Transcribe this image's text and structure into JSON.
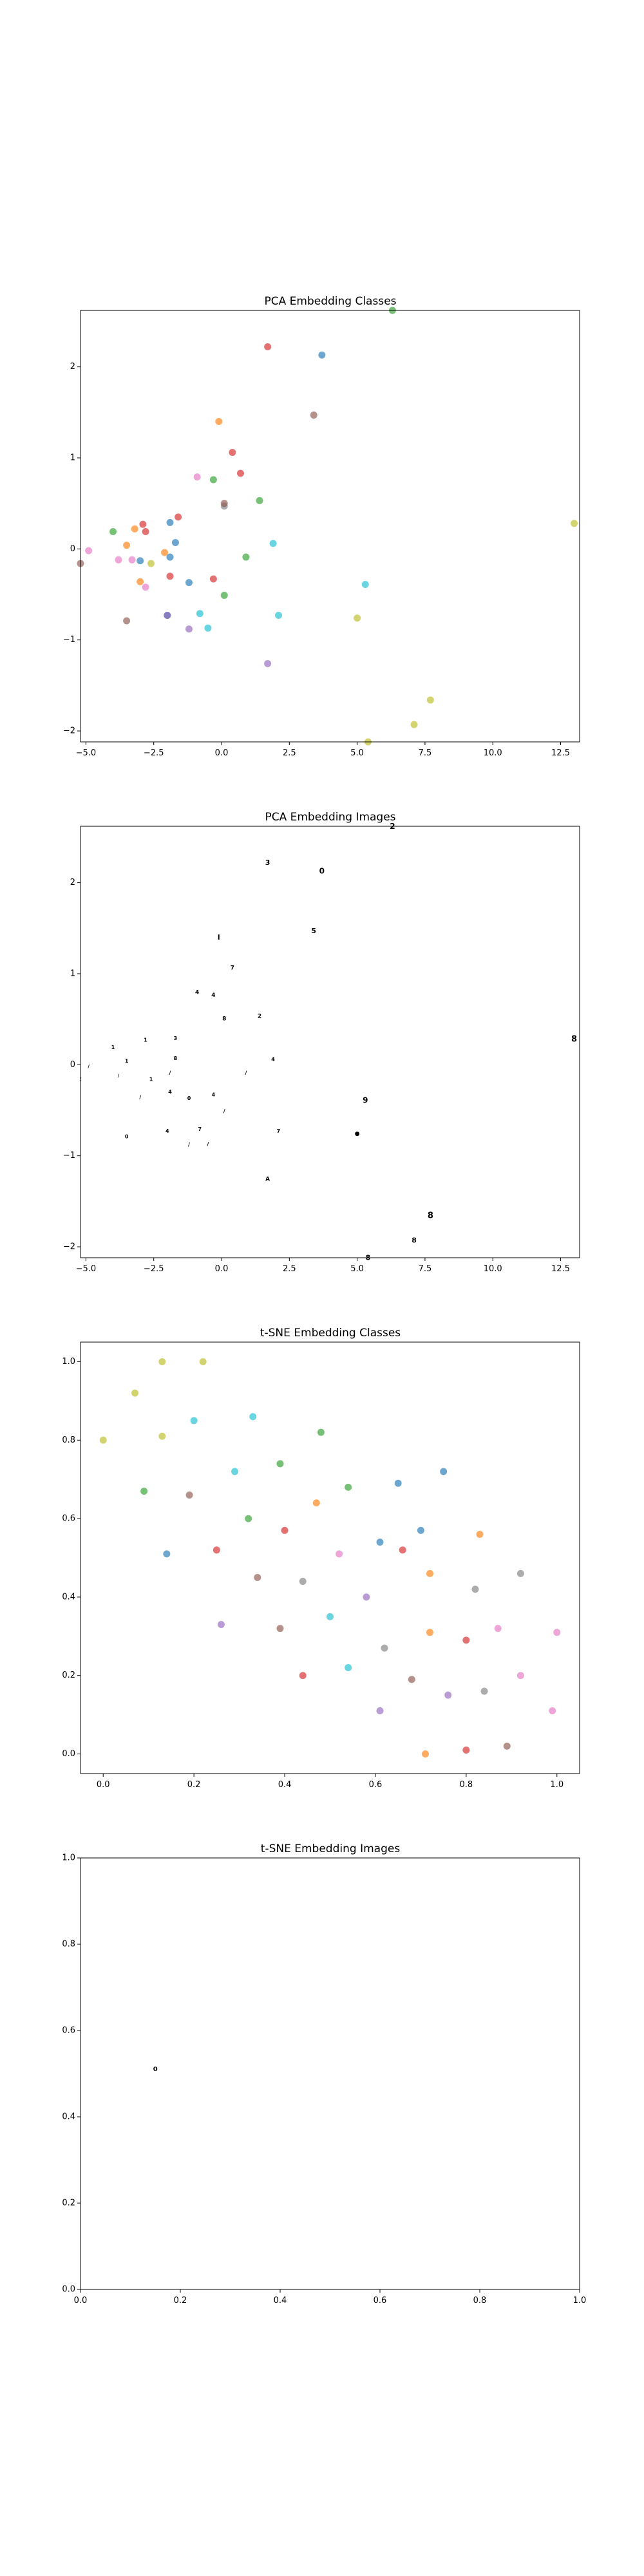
{
  "figure": {
    "background": "#ffffff"
  },
  "chart_data": [
    {
      "type": "scatter",
      "title": "PCA Embedding Classes",
      "xlabel": "",
      "ylabel": "",
      "xlim": [
        -5.2,
        13.2
      ],
      "ylim": [
        -2.12,
        2.62
      ],
      "xticks": [
        -5.0,
        -2.5,
        0.0,
        2.5,
        5.0,
        7.5,
        10.0,
        12.5
      ],
      "xtick_labels": [
        "−5.0",
        "−2.5",
        "0.0",
        "2.5",
        "5.0",
        "7.5",
        "10.0",
        "12.5"
      ],
      "yticks": [
        -2,
        -1,
        0,
        1,
        2
      ],
      "ytick_labels": [
        "−2",
        "−1",
        "0",
        "1",
        "2"
      ],
      "grid": false,
      "marker_alpha": 0.65,
      "points": [
        {
          "x": 1.7,
          "y": 2.22,
          "color": "#d62728"
        },
        {
          "x": 3.7,
          "y": 2.13,
          "color": "#1f77b4"
        },
        {
          "x": 6.3,
          "y": 2.62,
          "color": "#2ca02c"
        },
        {
          "x": -0.1,
          "y": 1.4,
          "color": "#ff7f0e"
        },
        {
          "x": 3.4,
          "y": 1.47,
          "color": "#8c564b"
        },
        {
          "x": 0.4,
          "y": 1.06,
          "color": "#d62728"
        },
        {
          "x": 0.7,
          "y": 0.83,
          "color": "#d62728"
        },
        {
          "x": -0.9,
          "y": 0.79,
          "color": "#e377c2"
        },
        {
          "x": -0.3,
          "y": 0.76,
          "color": "#2ca02c"
        },
        {
          "x": 1.4,
          "y": 0.53,
          "color": "#2ca02c"
        },
        {
          "x": 0.1,
          "y": 0.47,
          "color": "#7f7f7f"
        },
        {
          "x": 0.1,
          "y": 0.5,
          "color": "#8c564b"
        },
        {
          "x": -1.6,
          "y": 0.35,
          "color": "#d62728"
        },
        {
          "x": -1.9,
          "y": 0.29,
          "color": "#1f77b4"
        },
        {
          "x": -2.9,
          "y": 0.27,
          "color": "#d62728"
        },
        {
          "x": -3.2,
          "y": 0.22,
          "color": "#ff7f0e"
        },
        {
          "x": -2.8,
          "y": 0.19,
          "color": "#d62728"
        },
        {
          "x": -4.0,
          "y": 0.19,
          "color": "#2ca02c"
        },
        {
          "x": 13.0,
          "y": 0.28,
          "color": "#bcbd22"
        },
        {
          "x": -1.7,
          "y": 0.07,
          "color": "#1f77b4"
        },
        {
          "x": -3.5,
          "y": 0.04,
          "color": "#ff7f0e"
        },
        {
          "x": 1.9,
          "y": 0.06,
          "color": "#17becf"
        },
        {
          "x": -4.9,
          "y": -0.02,
          "color": "#e377c2"
        },
        {
          "x": -2.1,
          "y": -0.04,
          "color": "#ff7f0e"
        },
        {
          "x": -1.9,
          "y": -0.09,
          "color": "#1f77b4"
        },
        {
          "x": 0.9,
          "y": -0.09,
          "color": "#2ca02c"
        },
        {
          "x": -3.8,
          "y": -0.12,
          "color": "#e377c2"
        },
        {
          "x": -3.3,
          "y": -0.12,
          "color": "#e377c2"
        },
        {
          "x": -3.0,
          "y": -0.13,
          "color": "#1f77b4"
        },
        {
          "x": -2.6,
          "y": -0.16,
          "color": "#bcbd22"
        },
        {
          "x": -5.2,
          "y": -0.16,
          "color": "#8c564b"
        },
        {
          "x": -1.9,
          "y": -0.3,
          "color": "#d62728"
        },
        {
          "x": -0.3,
          "y": -0.33,
          "color": "#d62728"
        },
        {
          "x": -3.0,
          "y": -0.36,
          "color": "#ff7f0e"
        },
        {
          "x": -1.2,
          "y": -0.37,
          "color": "#1f77b4"
        },
        {
          "x": 5.3,
          "y": -0.39,
          "color": "#17becf"
        },
        {
          "x": -2.8,
          "y": -0.42,
          "color": "#e377c2"
        },
        {
          "x": 0.1,
          "y": -0.51,
          "color": "#2ca02c"
        },
        {
          "x": -0.8,
          "y": -0.71,
          "color": "#17becf"
        },
        {
          "x": -2.0,
          "y": -0.73,
          "color": "#1f77b4"
        },
        {
          "x": -2.0,
          "y": -0.73,
          "color": "#9467bd"
        },
        {
          "x": 2.1,
          "y": -0.73,
          "color": "#17becf"
        },
        {
          "x": 5.0,
          "y": -0.76,
          "color": "#bcbd22"
        },
        {
          "x": -3.5,
          "y": -0.79,
          "color": "#8c564b"
        },
        {
          "x": -0.5,
          "y": -0.87,
          "color": "#17becf"
        },
        {
          "x": -1.2,
          "y": -0.88,
          "color": "#9467bd"
        },
        {
          "x": 1.7,
          "y": -1.26,
          "color": "#9467bd"
        },
        {
          "x": 7.7,
          "y": -1.66,
          "color": "#bcbd22"
        },
        {
          "x": 7.1,
          "y": -1.93,
          "color": "#bcbd22"
        },
        {
          "x": 5.4,
          "y": -2.12,
          "color": "#bcbd22"
        }
      ]
    },
    {
      "type": "scatter",
      "title": "PCA Embedding Images",
      "xlabel": "",
      "ylabel": "",
      "xlim": [
        -5.2,
        13.2
      ],
      "ylim": [
        -2.12,
        2.62
      ],
      "xticks": [
        -5.0,
        -2.5,
        0.0,
        2.5,
        5.0,
        7.5,
        10.0,
        12.5
      ],
      "xtick_labels": [
        "−5.0",
        "−2.5",
        "0.0",
        "2.5",
        "5.0",
        "7.5",
        "10.0",
        "12.5"
      ],
      "yticks": [
        -2,
        -1,
        0,
        1,
        2
      ],
      "ytick_labels": [
        "−2",
        "−1",
        "0",
        "1",
        "2"
      ],
      "grid": false,
      "markers": "image-thumbnails",
      "points": [
        {
          "x": 1.7,
          "y": 2.22,
          "glyph": "3",
          "size": 11
        },
        {
          "x": 3.7,
          "y": 2.13,
          "glyph": "0",
          "size": 12
        },
        {
          "x": 6.3,
          "y": 2.62,
          "glyph": "2",
          "size": 12
        },
        {
          "x": 3.4,
          "y": 1.47,
          "glyph": "5",
          "size": 11
        },
        {
          "x": -0.1,
          "y": 1.4,
          "glyph": "l",
          "size": 11
        },
        {
          "x": 0.4,
          "y": 1.06,
          "glyph": "7",
          "size": 9
        },
        {
          "x": -0.9,
          "y": 0.79,
          "glyph": "4",
          "size": 9
        },
        {
          "x": -0.3,
          "y": 0.76,
          "glyph": "4",
          "size": 9
        },
        {
          "x": 1.4,
          "y": 0.53,
          "glyph": "2",
          "size": 9
        },
        {
          "x": 0.1,
          "y": 0.5,
          "glyph": "8",
          "size": 9
        },
        {
          "x": -1.7,
          "y": 0.29,
          "glyph": "3",
          "size": 8
        },
        {
          "x": -2.8,
          "y": 0.27,
          "glyph": "1",
          "size": 8
        },
        {
          "x": 13.0,
          "y": 0.28,
          "glyph": "8",
          "size": 13
        },
        {
          "x": -4.0,
          "y": 0.19,
          "glyph": "1",
          "size": 8
        },
        {
          "x": 1.9,
          "y": 0.06,
          "glyph": "4",
          "size": 8
        },
        {
          "x": -1.7,
          "y": 0.07,
          "glyph": "8",
          "size": 8
        },
        {
          "x": -3.5,
          "y": 0.04,
          "glyph": "1",
          "size": 8
        },
        {
          "x": -4.9,
          "y": -0.02,
          "glyph": "/",
          "size": 7
        },
        {
          "x": 0.9,
          "y": -0.09,
          "glyph": "/",
          "size": 8
        },
        {
          "x": -1.9,
          "y": -0.09,
          "glyph": "/",
          "size": 8
        },
        {
          "x": -3.8,
          "y": -0.12,
          "glyph": "/",
          "size": 7
        },
        {
          "x": -2.6,
          "y": -0.16,
          "glyph": "1",
          "size": 8
        },
        {
          "x": -5.2,
          "y": -0.16,
          "glyph": "/",
          "size": 7
        },
        {
          "x": -1.9,
          "y": -0.3,
          "glyph": "4",
          "size": 8
        },
        {
          "x": -0.3,
          "y": -0.33,
          "glyph": "4",
          "size": 8
        },
        {
          "x": -3.0,
          "y": -0.36,
          "glyph": "/",
          "size": 8
        },
        {
          "x": -1.2,
          "y": -0.37,
          "glyph": "0",
          "size": 8
        },
        {
          "x": 5.3,
          "y": -0.39,
          "glyph": "9",
          "size": 12
        },
        {
          "x": 0.1,
          "y": -0.51,
          "glyph": "/",
          "size": 8
        },
        {
          "x": -0.8,
          "y": -0.71,
          "glyph": "7",
          "size": 8
        },
        {
          "x": -2.0,
          "y": -0.73,
          "glyph": "4",
          "size": 8
        },
        {
          "x": 2.1,
          "y": -0.73,
          "glyph": "7",
          "size": 8
        },
        {
          "x": 5.0,
          "y": -0.76,
          "glyph": "●",
          "size": 9
        },
        {
          "x": -3.5,
          "y": -0.79,
          "glyph": "0",
          "size": 8
        },
        {
          "x": -0.5,
          "y": -0.87,
          "glyph": "/",
          "size": 8
        },
        {
          "x": -1.2,
          "y": -0.88,
          "glyph": "/",
          "size": 8
        },
        {
          "x": 1.7,
          "y": -1.26,
          "glyph": "A",
          "size": 9
        },
        {
          "x": 7.7,
          "y": -1.66,
          "glyph": "8",
          "size": 13
        },
        {
          "x": 7.1,
          "y": -1.93,
          "glyph": "8",
          "size": 11
        },
        {
          "x": 5.4,
          "y": -2.12,
          "glyph": "8",
          "size": 11
        }
      ]
    },
    {
      "type": "scatter",
      "title": "t-SNE Embedding Classes",
      "xlabel": "",
      "ylabel": "",
      "xlim": [
        -0.05,
        1.05
      ],
      "ylim": [
        -0.05,
        1.05
      ],
      "xticks": [
        0.0,
        0.2,
        0.4,
        0.6,
        0.8,
        1.0
      ],
      "xtick_labels": [
        "0.0",
        "0.2",
        "0.4",
        "0.6",
        "0.8",
        "1.0"
      ],
      "yticks": [
        0.0,
        0.2,
        0.4,
        0.6,
        0.8,
        1.0
      ],
      "ytick_labels": [
        "0.0",
        "0.2",
        "0.4",
        "0.6",
        "0.8",
        "1.0"
      ],
      "grid": false,
      "marker_alpha": 0.65,
      "points": [
        {
          "x": 0.13,
          "y": 1.0,
          "color": "#bcbd22"
        },
        {
          "x": 0.22,
          "y": 1.0,
          "color": "#bcbd22"
        },
        {
          "x": 0.07,
          "y": 0.92,
          "color": "#bcbd22"
        },
        {
          "x": 0.2,
          "y": 0.85,
          "color": "#17becf"
        },
        {
          "x": 0.33,
          "y": 0.86,
          "color": "#17becf"
        },
        {
          "x": 0.13,
          "y": 0.81,
          "color": "#bcbd22"
        },
        {
          "x": 0.48,
          "y": 0.82,
          "color": "#2ca02c"
        },
        {
          "x": 0.0,
          "y": 0.8,
          "color": "#bcbd22"
        },
        {
          "x": 0.39,
          "y": 0.74,
          "color": "#2ca02c"
        },
        {
          "x": 0.29,
          "y": 0.72,
          "color": "#17becf"
        },
        {
          "x": 0.75,
          "y": 0.72,
          "color": "#1f77b4"
        },
        {
          "x": 0.65,
          "y": 0.69,
          "color": "#1f77b4"
        },
        {
          "x": 0.54,
          "y": 0.68,
          "color": "#2ca02c"
        },
        {
          "x": 0.09,
          "y": 0.67,
          "color": "#2ca02c"
        },
        {
          "x": 0.19,
          "y": 0.66,
          "color": "#8c564b"
        },
        {
          "x": 0.47,
          "y": 0.64,
          "color": "#ff7f0e"
        },
        {
          "x": 0.32,
          "y": 0.6,
          "color": "#2ca02c"
        },
        {
          "x": 0.4,
          "y": 0.57,
          "color": "#d62728"
        },
        {
          "x": 0.7,
          "y": 0.57,
          "color": "#1f77b4"
        },
        {
          "x": 0.83,
          "y": 0.56,
          "color": "#ff7f0e"
        },
        {
          "x": 0.61,
          "y": 0.54,
          "color": "#1f77b4"
        },
        {
          "x": 0.14,
          "y": 0.51,
          "color": "#1f77b4"
        },
        {
          "x": 0.25,
          "y": 0.52,
          "color": "#d62728"
        },
        {
          "x": 0.52,
          "y": 0.51,
          "color": "#e377c2"
        },
        {
          "x": 0.66,
          "y": 0.52,
          "color": "#d62728"
        },
        {
          "x": 0.72,
          "y": 0.46,
          "color": "#ff7f0e"
        },
        {
          "x": 0.92,
          "y": 0.46,
          "color": "#7f7f7f"
        },
        {
          "x": 0.34,
          "y": 0.45,
          "color": "#8c564b"
        },
        {
          "x": 0.44,
          "y": 0.44,
          "color": "#7f7f7f"
        },
        {
          "x": 0.82,
          "y": 0.42,
          "color": "#7f7f7f"
        },
        {
          "x": 0.58,
          "y": 0.4,
          "color": "#9467bd"
        },
        {
          "x": 0.5,
          "y": 0.35,
          "color": "#17becf"
        },
        {
          "x": 0.26,
          "y": 0.33,
          "color": "#9467bd"
        },
        {
          "x": 0.39,
          "y": 0.32,
          "color": "#8c564b"
        },
        {
          "x": 0.72,
          "y": 0.31,
          "color": "#ff7f0e"
        },
        {
          "x": 0.87,
          "y": 0.32,
          "color": "#e377c2"
        },
        {
          "x": 1.0,
          "y": 0.31,
          "color": "#e377c2"
        },
        {
          "x": 0.8,
          "y": 0.29,
          "color": "#d62728"
        },
        {
          "x": 0.62,
          "y": 0.27,
          "color": "#7f7f7f"
        },
        {
          "x": 0.54,
          "y": 0.22,
          "color": "#17becf"
        },
        {
          "x": 0.44,
          "y": 0.2,
          "color": "#d62728"
        },
        {
          "x": 0.92,
          "y": 0.2,
          "color": "#e377c2"
        },
        {
          "x": 0.68,
          "y": 0.19,
          "color": "#8c564b"
        },
        {
          "x": 0.76,
          "y": 0.15,
          "color": "#9467bd"
        },
        {
          "x": 0.84,
          "y": 0.16,
          "color": "#7f7f7f"
        },
        {
          "x": 0.61,
          "y": 0.11,
          "color": "#9467bd"
        },
        {
          "x": 0.99,
          "y": 0.11,
          "color": "#e377c2"
        },
        {
          "x": 0.89,
          "y": 0.02,
          "color": "#8c564b"
        },
        {
          "x": 0.8,
          "y": 0.01,
          "color": "#d62728"
        },
        {
          "x": 0.71,
          "y": 0.0,
          "color": "#ff7f0e"
        }
      ]
    },
    {
      "type": "scatter",
      "title": "t-SNE Embedding Images",
      "xlabel": "",
      "ylabel": "",
      "xlim": [
        0.0,
        1.0
      ],
      "ylim": [
        0.0,
        1.0
      ],
      "xticks": [
        0.0,
        0.2,
        0.4,
        0.6,
        0.8,
        1.0
      ],
      "xtick_labels": [
        "0.0",
        "0.2",
        "0.4",
        "0.6",
        "0.8",
        "1.0"
      ],
      "yticks": [
        0.0,
        0.2,
        0.4,
        0.6,
        0.8,
        1.0
      ],
      "ytick_labels": [
        "0.0",
        "0.2",
        "0.4",
        "0.6",
        "0.8",
        "1.0"
      ],
      "grid": false,
      "markers": "image-thumbnails",
      "points": [
        {
          "x": 0.15,
          "y": 0.51,
          "glyph": "0",
          "size": 10
        }
      ]
    }
  ]
}
